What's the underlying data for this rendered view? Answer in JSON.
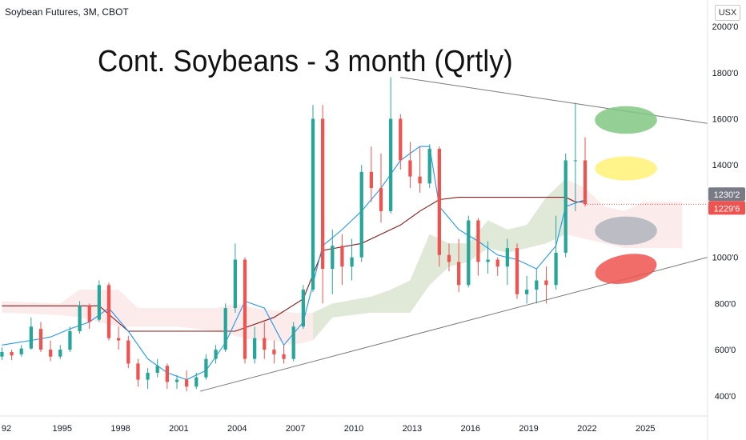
{
  "header": {
    "symbol_label": "Soybean Futures, 3M, CBOT",
    "unit": "USX"
  },
  "chart_data": {
    "type": "candlestick",
    "title": "Cont. Soybeans - 3 month (Qrtly)",
    "y_ticks": [
      "2000'0",
      "1800'0",
      "1600'0",
      "1400'0",
      "1200'0",
      "1000'0",
      "800'0",
      "600'0",
      "400'0"
    ],
    "x_ticks": [
      "92",
      "1995",
      "1998",
      "2001",
      "2004",
      "2007",
      "2010",
      "2013",
      "2016",
      "2019",
      "2022",
      "2025"
    ],
    "price_tags": [
      {
        "label": "1230'2",
        "value": 1230.25,
        "color": "#787b86"
      },
      {
        "label": "1229'6",
        "value": 1229.75,
        "color": "#ef5350"
      }
    ],
    "ylim": [
      330,
      2080
    ],
    "xlim": [
      1991.9,
      2028.3
    ],
    "colors": {
      "up": "#26a69a",
      "down": "#ef5350",
      "tenkan": "#2196f3",
      "kijun": "#8b1a1a",
      "trendline": "#7a7a7a"
    },
    "candles": [
      [
        1992.0,
        570,
        610,
        555,
        590
      ],
      [
        1992.5,
        590,
        600,
        555,
        575
      ],
      [
        1993.0,
        580,
        620,
        570,
        605
      ],
      [
        1993.5,
        605,
        740,
        600,
        700
      ],
      [
        1994.0,
        690,
        720,
        590,
        600
      ],
      [
        1994.5,
        600,
        640,
        550,
        570
      ],
      [
        1995.0,
        570,
        620,
        560,
        600
      ],
      [
        1995.5,
        600,
        700,
        590,
        680
      ],
      [
        1996.0,
        680,
        810,
        670,
        790
      ],
      [
        1996.5,
        790,
        800,
        690,
        720
      ],
      [
        1997.0,
        730,
        900,
        720,
        880
      ],
      [
        1997.5,
        880,
        890,
        640,
        650
      ],
      [
        1998.0,
        650,
        700,
        600,
        640
      ],
      [
        1998.5,
        640,
        660,
        520,
        540
      ],
      [
        1999.0,
        540,
        560,
        440,
        470
      ],
      [
        1999.5,
        470,
        520,
        430,
        500
      ],
      [
        2000.0,
        500,
        560,
        480,
        530
      ],
      [
        2000.5,
        530,
        540,
        430,
        460
      ],
      [
        2001.0,
        460,
        490,
        430,
        470
      ],
      [
        2001.5,
        470,
        510,
        420,
        440
      ],
      [
        2002.0,
        440,
        500,
        430,
        480
      ],
      [
        2002.5,
        480,
        580,
        470,
        560
      ],
      [
        2003.0,
        560,
        620,
        540,
        600
      ],
      [
        2003.5,
        600,
        800,
        590,
        780
      ],
      [
        2004.0,
        780,
        1060,
        760,
        990
      ],
      [
        2004.5,
        990,
        1000,
        540,
        560
      ],
      [
        2005.0,
        560,
        700,
        540,
        650
      ],
      [
        2005.5,
        650,
        720,
        560,
        600
      ],
      [
        2006.0,
        600,
        640,
        540,
        580
      ],
      [
        2006.5,
        580,
        620,
        540,
        560
      ],
      [
        2007.0,
        560,
        720,
        550,
        700
      ],
      [
        2007.5,
        700,
        880,
        690,
        860
      ],
      [
        2008.0,
        860,
        1660,
        850,
        1600
      ],
      [
        2008.5,
        1600,
        1660,
        800,
        950
      ],
      [
        2009.0,
        950,
        1120,
        840,
        1050
      ],
      [
        2009.5,
        1050,
        1100,
        880,
        960
      ],
      [
        2010.0,
        960,
        1080,
        900,
        1000
      ],
      [
        2010.5,
        1000,
        1400,
        980,
        1370
      ],
      [
        2011.0,
        1370,
        1480,
        1240,
        1300
      ],
      [
        2011.5,
        1300,
        1450,
        1150,
        1200
      ],
      [
        2012.0,
        1200,
        1780,
        1190,
        1600
      ],
      [
        2012.5,
        1600,
        1620,
        1380,
        1420
      ],
      [
        2013.0,
        1420,
        1500,
        1300,
        1350
      ],
      [
        2013.5,
        1350,
        1480,
        1280,
        1320
      ],
      [
        2014.0,
        1320,
        1490,
        1300,
        1470
      ],
      [
        2014.5,
        1470,
        1480,
        960,
        1010
      ],
      [
        2015.0,
        1010,
        1060,
        940,
        980
      ],
      [
        2015.5,
        980,
        1080,
        850,
        880
      ],
      [
        2016.0,
        880,
        1180,
        870,
        1160
      ],
      [
        2016.5,
        1160,
        1170,
        920,
        980
      ],
      [
        2017.0,
        980,
        1070,
        930,
        990
      ],
      [
        2017.5,
        990,
        1000,
        920,
        960
      ],
      [
        2018.0,
        960,
        1080,
        880,
        1040
      ],
      [
        2018.5,
        1040,
        1060,
        820,
        840
      ],
      [
        2019.0,
        840,
        920,
        800,
        860
      ],
      [
        2019.5,
        860,
        950,
        800,
        900
      ],
      [
        2020.0,
        900,
        960,
        800,
        880
      ],
      [
        2020.5,
        880,
        1180,
        860,
        1020
      ],
      [
        2021.0,
        1020,
        1450,
        1000,
        1420
      ],
      [
        2021.5,
        1420,
        1670,
        1200,
        1420
      ],
      [
        2022.0,
        1420,
        1520,
        1220,
        1230
      ]
    ],
    "tenkan": [
      [
        1992.0,
        620
      ],
      [
        1993.5,
        640
      ],
      [
        1994.5,
        655
      ],
      [
        1995.5,
        690
      ],
      [
        1996.5,
        720
      ],
      [
        1997.5,
        780
      ],
      [
        1998.5,
        680
      ],
      [
        1999.5,
        560
      ],
      [
        2000.5,
        500
      ],
      [
        2001.5,
        470
      ],
      [
        2002.5,
        510
      ],
      [
        2003.5,
        630
      ],
      [
        2004.5,
        810
      ],
      [
        2005.5,
        780
      ],
      [
        2006.5,
        620
      ],
      [
        2007.5,
        720
      ],
      [
        2008.5,
        1050
      ],
      [
        2009.5,
        1120
      ],
      [
        2010.5,
        1200
      ],
      [
        2011.5,
        1300
      ],
      [
        2012.5,
        1420
      ],
      [
        2013.5,
        1480
      ],
      [
        2014.0,
        1480
      ],
      [
        2014.5,
        1220
      ],
      [
        2015.5,
        1120
      ],
      [
        2016.5,
        1070
      ],
      [
        2017.5,
        1010
      ],
      [
        2018.5,
        990
      ],
      [
        2019.5,
        950
      ],
      [
        2020.5,
        1050
      ],
      [
        2021.0,
        1220
      ],
      [
        2022.0,
        1250
      ]
    ],
    "kijun": [
      [
        1992.0,
        790
      ],
      [
        1997.0,
        790
      ],
      [
        1998.5,
        680
      ],
      [
        2004.0,
        680
      ],
      [
        2006.0,
        740
      ],
      [
        2007.5,
        820
      ],
      [
        2008.5,
        1030
      ],
      [
        2010.5,
        1060
      ],
      [
        2011.5,
        1100
      ],
      [
        2012.5,
        1140
      ],
      [
        2013.5,
        1200
      ],
      [
        2014.5,
        1250
      ],
      [
        2015.5,
        1260
      ],
      [
        2021.0,
        1260
      ],
      [
        2021.5,
        1240
      ],
      [
        2022.0,
        1240
      ]
    ],
    "cloud": [
      [
        1992.0,
        810,
        760
      ],
      [
        1995.0,
        800,
        750
      ],
      [
        1996.0,
        860,
        740
      ],
      [
        1998.0,
        860,
        700
      ],
      [
        1999.0,
        780,
        700
      ],
      [
        2001.0,
        780,
        700
      ],
      [
        2003.0,
        780,
        680
      ],
      [
        2004.0,
        800,
        660
      ],
      [
        2005.0,
        780,
        640
      ],
      [
        2006.0,
        770,
        640
      ],
      [
        2007.0,
        760,
        620
      ],
      [
        2008.0,
        760,
        640
      ],
      [
        2009.0,
        800,
        740
      ],
      [
        2011.0,
        830,
        760
      ],
      [
        2012.0,
        860,
        760
      ],
      [
        2013.0,
        900,
        760
      ],
      [
        2014.0,
        1100,
        880
      ],
      [
        2015.0,
        1060,
        960
      ],
      [
        2016.0,
        1060,
        980
      ],
      [
        2017.0,
        1160,
        1040
      ],
      [
        2018.0,
        1120,
        1020
      ],
      [
        2019.0,
        1140,
        1040
      ],
      [
        2020.0,
        1260,
        1060
      ],
      [
        2021.0,
        1340,
        1100
      ],
      [
        2022.0,
        1300,
        1080
      ],
      [
        2023.0,
        1220,
        1060
      ],
      [
        2024.0,
        1200,
        1040
      ],
      [
        2025.0,
        1240,
        1040
      ],
      [
        2026.0,
        1240,
        1040
      ],
      [
        2027.0,
        1240,
        1040
      ]
    ],
    "trendlines": [
      {
        "from": [
          2002.2,
          420
        ],
        "to": [
          2028.3,
          1000
        ]
      },
      {
        "from": [
          2012.5,
          1780
        ],
        "to": [
          2028.3,
          1580
        ]
      }
    ],
    "annotations": [
      {
        "shape": "ellipse",
        "color": "#81c784",
        "center": [
          2024.1,
          1595
        ],
        "radii": [
          1.6,
          60
        ]
      },
      {
        "shape": "ellipse",
        "color": "#fff176",
        "center": [
          2024.1,
          1385
        ],
        "radii": [
          1.6,
          52
        ]
      },
      {
        "shape": "ellipse",
        "color": "#b0b4be",
        "center": [
          2024.1,
          1115
        ],
        "radii": [
          1.6,
          62
        ]
      },
      {
        "shape": "ellipse",
        "color": "#ef5350",
        "center": [
          2024.1,
          950
        ],
        "radii": [
          1.6,
          62
        ]
      }
    ]
  }
}
